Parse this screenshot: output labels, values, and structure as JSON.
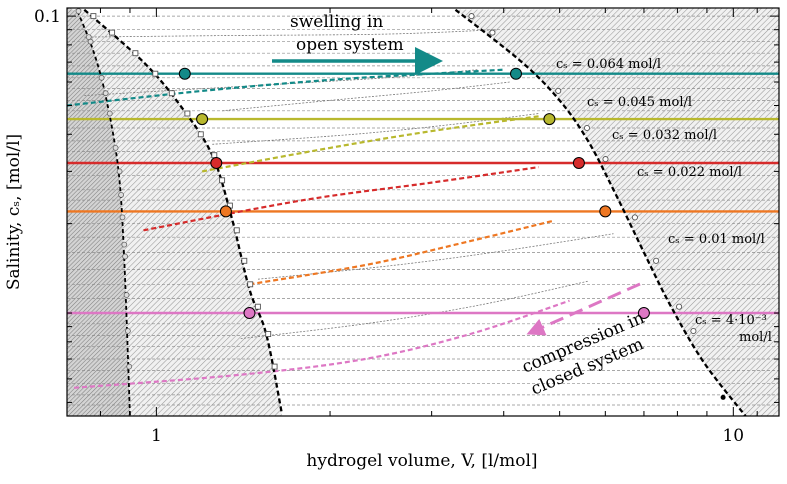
{
  "chart_data": {
    "type": "line",
    "title": "",
    "xlabel": "hydrogel volume, V, [l/mol]",
    "ylabel": "Salinity, cₛ, [mol/l]",
    "x_scale": "log",
    "y_scale": "log",
    "xlim": [
      0.7,
      12
    ],
    "ylim": [
      0.0045,
      0.1065
    ],
    "x_ticks": [
      {
        "v": 1,
        "label": "1"
      },
      {
        "v": 10,
        "label": "10"
      }
    ],
    "y_ticks": [
      {
        "v": 0.1,
        "label": "0.1"
      }
    ],
    "grid": "dashed horizontal",
    "levels": [
      {
        "cs": 0.064,
        "label": "cₛ = 0.064 mol/l",
        "color": "#138a88",
        "v_left": 1.12,
        "v_right": 4.2
      },
      {
        "cs": 0.045,
        "label": "cₛ = 0.045 mol/l",
        "color": "#b8b82e",
        "v_left": 1.2,
        "v_right": 4.8
      },
      {
        "cs": 0.032,
        "label": "cₛ = 0.032 mol/l",
        "color": "#d62b2b",
        "v_left": 1.27,
        "v_right": 5.4
      },
      {
        "cs": 0.022,
        "label": "cₛ = 0.022 mol/l",
        "color": "#ee7722",
        "v_left": 1.32,
        "v_right": 6.0
      },
      {
        "cs": 0.01,
        "label": "cₛ = 0.01 mol/l",
        "color": "#dd77c4",
        "v_left": 1.45,
        "v_right": 7.0
      },
      {
        "cs": 0.0045,
        "label": "cₛ = 4·10⁻³ mol/l",
        "color": "#000000",
        "v_left": null,
        "v_right": null
      }
    ],
    "closed_system_curves": [
      {
        "color": "#138a88",
        "points": [
          [
            0.7,
            0.05
          ],
          [
            1.2,
            0.056
          ],
          [
            2,
            0.061
          ],
          [
            3,
            0.064
          ],
          [
            4,
            0.066
          ]
        ]
      },
      {
        "color": "#b8b82e",
        "points": [
          [
            1.2,
            0.03
          ],
          [
            2,
            0.036
          ],
          [
            3,
            0.041
          ],
          [
            4.6,
            0.046
          ]
        ]
      },
      {
        "color": "#d62b2b",
        "points": [
          [
            0.95,
            0.019
          ],
          [
            1.8,
            0.024
          ],
          [
            3,
            0.0275
          ],
          [
            4.6,
            0.031
          ]
        ]
      },
      {
        "color": "#ee7722",
        "points": [
          [
            1.45,
            0.0125
          ],
          [
            2.3,
            0.0145
          ],
          [
            3.3,
            0.017
          ],
          [
            4.9,
            0.0205
          ]
        ]
      },
      {
        "color": "#dd77c4",
        "points": [
          [
            0.72,
            0.0056
          ],
          [
            1.4,
            0.0062
          ],
          [
            2.3,
            0.007
          ],
          [
            3.5,
            0.0085
          ],
          [
            5.2,
            0.011
          ]
        ]
      }
    ],
    "boundary_curves": [
      {
        "name": "left",
        "points": [
          [
            0.75,
            0.105
          ],
          [
            0.95,
            0.07
          ],
          [
            1.1,
            0.05
          ],
          [
            1.25,
            0.034
          ],
          [
            1.35,
            0.021
          ],
          [
            1.45,
            0.012
          ],
          [
            1.55,
            0.0085
          ],
          [
            1.65,
            0.0046
          ]
        ]
      },
      {
        "name": "right",
        "points": [
          [
            3.3,
            0.105
          ],
          [
            4.3,
            0.07
          ],
          [
            5.0,
            0.052
          ],
          [
            5.6,
            0.038
          ],
          [
            6.2,
            0.026
          ],
          [
            7.0,
            0.016
          ],
          [
            7.8,
            0.0105
          ],
          [
            8.9,
            0.0068
          ],
          [
            10.5,
            0.0045
          ]
        ]
      },
      {
        "name": "far_left",
        "points": [
          [
            0.73,
            0.104
          ],
          [
            0.78,
            0.075
          ],
          [
            0.82,
            0.052
          ],
          [
            0.86,
            0.03
          ],
          [
            0.88,
            0.015
          ],
          [
            0.9,
            0.0045
          ]
        ]
      }
    ],
    "annotations": [
      {
        "text1": "swelling in",
        "text2": "open system"
      },
      {
        "text1": "compression in",
        "text2": "closed system"
      }
    ]
  }
}
